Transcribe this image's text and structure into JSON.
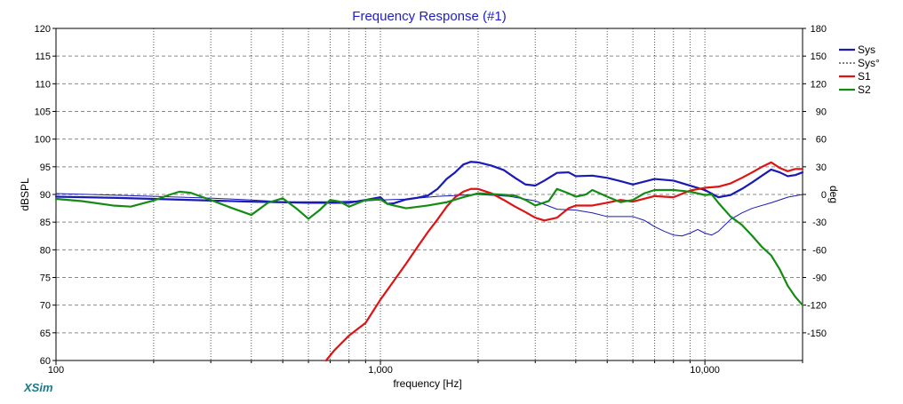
{
  "chart_data": {
    "type": "line",
    "title": "Frequency Response (#1)",
    "xlabel": "frequency [Hz]",
    "ylabel": "dBSPL",
    "y2label": "deg",
    "brand": "XSim",
    "x_scale": "log",
    "xlim": [
      100,
      20000
    ],
    "ylim": [
      60,
      120
    ],
    "y2lim": [
      -180,
      180
    ],
    "x_tick_labels": [
      {
        "value": 100,
        "label": "100"
      },
      {
        "value": 1000,
        "label": "1,000"
      },
      {
        "value": 10000,
        "label": "10,000"
      }
    ],
    "y_ticks": [
      60,
      65,
      70,
      75,
      80,
      85,
      90,
      95,
      100,
      105,
      110,
      115,
      120
    ],
    "y2_ticks": [
      -150,
      -120,
      -90,
      -60,
      -30,
      0,
      30,
      60,
      90,
      120,
      150,
      180
    ],
    "y2_tick_labels": [
      "-150",
      "-120",
      "-90",
      "-60",
      "-30",
      "0",
      "30",
      "60",
      "90",
      "120",
      "150",
      "180"
    ],
    "grid": true,
    "legend_position": "top-right",
    "legend": [
      {
        "name": "Sys",
        "style": "solid"
      },
      {
        "name": "Sys°",
        "style": "dashed"
      },
      {
        "name": "S1",
        "style": "solid"
      },
      {
        "name": "S2",
        "style": "solid"
      }
    ],
    "series": [
      {
        "name": "Sys",
        "axis": "y",
        "color": "#1a1ab4",
        "width": 2.2,
        "points": [
          [
            100,
            89.6
          ],
          [
            150,
            89.4
          ],
          [
            200,
            89.2
          ],
          [
            300,
            88.9
          ],
          [
            400,
            88.7
          ],
          [
            500,
            88.6
          ],
          [
            600,
            88.5
          ],
          [
            700,
            88.5
          ],
          [
            800,
            88.5
          ],
          [
            900,
            89.0
          ],
          [
            1000,
            89.5
          ],
          [
            1050,
            88.3
          ],
          [
            1100,
            88.4
          ],
          [
            1200,
            89.1
          ],
          [
            1300,
            89.4
          ],
          [
            1400,
            89.8
          ],
          [
            1500,
            91.0
          ],
          [
            1600,
            92.8
          ],
          [
            1700,
            94.0
          ],
          [
            1800,
            95.4
          ],
          [
            1900,
            95.9
          ],
          [
            2000,
            95.8
          ],
          [
            2200,
            95.2
          ],
          [
            2400,
            94.4
          ],
          [
            2600,
            93.0
          ],
          [
            2800,
            91.8
          ],
          [
            3000,
            91.6
          ],
          [
            3200,
            92.5
          ],
          [
            3500,
            93.9
          ],
          [
            3800,
            94.0
          ],
          [
            4000,
            93.3
          ],
          [
            4500,
            93.4
          ],
          [
            5000,
            93.0
          ],
          [
            5500,
            92.4
          ],
          [
            6000,
            91.8
          ],
          [
            7000,
            92.8
          ],
          [
            8000,
            92.5
          ],
          [
            9000,
            91.6
          ],
          [
            10000,
            90.8
          ],
          [
            11000,
            89.5
          ],
          [
            12000,
            89.9
          ],
          [
            13000,
            91.0
          ],
          [
            14000,
            92.2
          ],
          [
            15000,
            93.4
          ],
          [
            16000,
            94.5
          ],
          [
            17000,
            94.0
          ],
          [
            18000,
            93.3
          ],
          [
            19000,
            93.5
          ],
          [
            20000,
            94.0
          ]
        ]
      },
      {
        "name": "Sys°",
        "axis": "y2",
        "color": "#1a1ab4",
        "width": 1,
        "points": [
          [
            100,
            1
          ],
          [
            200,
            -2
          ],
          [
            300,
            -4
          ],
          [
            400,
            -6
          ],
          [
            500,
            -8
          ],
          [
            700,
            -8
          ],
          [
            900,
            -7
          ],
          [
            1000,
            -6
          ],
          [
            1200,
            -5
          ],
          [
            1500,
            -2
          ],
          [
            2000,
            0
          ],
          [
            2500,
            -2
          ],
          [
            3000,
            -7
          ],
          [
            3500,
            -16
          ],
          [
            4000,
            -17
          ],
          [
            4500,
            -20
          ],
          [
            5000,
            -24
          ],
          [
            5500,
            -24
          ],
          [
            6000,
            -24
          ],
          [
            6500,
            -28
          ],
          [
            7000,
            -35
          ],
          [
            7500,
            -40
          ],
          [
            8000,
            -44
          ],
          [
            8500,
            -45
          ],
          [
            9000,
            -42
          ],
          [
            9500,
            -38
          ],
          [
            10000,
            -42
          ],
          [
            10500,
            -44
          ],
          [
            11000,
            -40
          ],
          [
            12000,
            -27
          ],
          [
            13000,
            -20
          ],
          [
            14000,
            -15
          ],
          [
            16000,
            -9
          ],
          [
            18000,
            -3
          ],
          [
            20000,
            0
          ]
        ]
      },
      {
        "name": "S1",
        "axis": "y",
        "color": "#dc1414",
        "width": 2.2,
        "points": [
          [
            680,
            60
          ],
          [
            720,
            61.8
          ],
          [
            800,
            64.5
          ],
          [
            900,
            66.8
          ],
          [
            1000,
            71
          ],
          [
            1100,
            74.4
          ],
          [
            1200,
            77.5
          ],
          [
            1300,
            80.5
          ],
          [
            1400,
            83.2
          ],
          [
            1500,
            85.5
          ],
          [
            1600,
            87.8
          ],
          [
            1700,
            89.5
          ],
          [
            1800,
            90.5
          ],
          [
            1900,
            91.0
          ],
          [
            2000,
            91.0
          ],
          [
            2200,
            90.2
          ],
          [
            2400,
            89.0
          ],
          [
            2600,
            87.8
          ],
          [
            2800,
            86.8
          ],
          [
            3000,
            85.8
          ],
          [
            3200,
            85.3
          ],
          [
            3500,
            85.8
          ],
          [
            3800,
            87.5
          ],
          [
            4000,
            88.0
          ],
          [
            4500,
            88.0
          ],
          [
            5000,
            88.5
          ],
          [
            5500,
            89.0
          ],
          [
            6000,
            88.7
          ],
          [
            7000,
            89.7
          ],
          [
            8000,
            89.5
          ],
          [
            9000,
            90.7
          ],
          [
            10000,
            91.2
          ],
          [
            11000,
            91.4
          ],
          [
            12000,
            92.0
          ],
          [
            13000,
            93.0
          ],
          [
            14000,
            94.0
          ],
          [
            15000,
            95.0
          ],
          [
            16000,
            95.8
          ],
          [
            17000,
            94.8
          ],
          [
            18000,
            94.2
          ],
          [
            19000,
            94.6
          ],
          [
            20000,
            94.6
          ]
        ]
      },
      {
        "name": "S2",
        "axis": "y",
        "color": "#148c14",
        "width": 2.2,
        "points": [
          [
            100,
            89.2
          ],
          [
            120,
            88.8
          ],
          [
            150,
            88.0
          ],
          [
            170,
            87.8
          ],
          [
            200,
            88.9
          ],
          [
            220,
            89.8
          ],
          [
            240,
            90.5
          ],
          [
            260,
            90.3
          ],
          [
            300,
            89.0
          ],
          [
            350,
            87.5
          ],
          [
            400,
            86.3
          ],
          [
            450,
            88.5
          ],
          [
            500,
            89.3
          ],
          [
            550,
            87.5
          ],
          [
            600,
            85.6
          ],
          [
            650,
            87.2
          ],
          [
            700,
            89.0
          ],
          [
            750,
            88.7
          ],
          [
            800,
            87.8
          ],
          [
            900,
            89.0
          ],
          [
            1000,
            89.1
          ],
          [
            1050,
            88.3
          ],
          [
            1100,
            88.0
          ],
          [
            1200,
            87.5
          ],
          [
            1400,
            88.0
          ],
          [
            1600,
            88.6
          ],
          [
            1800,
            89.5
          ],
          [
            2000,
            90.2
          ],
          [
            2300,
            90.0
          ],
          [
            2600,
            89.8
          ],
          [
            2800,
            89.0
          ],
          [
            3000,
            88.0
          ],
          [
            3300,
            88.8
          ],
          [
            3500,
            91.0
          ],
          [
            3800,
            90.2
          ],
          [
            4000,
            89.6
          ],
          [
            4300,
            90.0
          ],
          [
            4500,
            90.8
          ],
          [
            5000,
            89.6
          ],
          [
            5500,
            88.6
          ],
          [
            6000,
            89.0
          ],
          [
            6500,
            90.2
          ],
          [
            7000,
            90.8
          ],
          [
            8000,
            90.8
          ],
          [
            9000,
            90.5
          ],
          [
            10000,
            89.9
          ],
          [
            10500,
            90.0
          ],
          [
            11000,
            88.5
          ],
          [
            12000,
            86.0
          ],
          [
            13000,
            84.5
          ],
          [
            14000,
            82.5
          ],
          [
            15000,
            80.5
          ],
          [
            16000,
            79.0
          ],
          [
            17000,
            76.5
          ],
          [
            18000,
            73.5
          ],
          [
            19000,
            71.5
          ],
          [
            20000,
            70.0
          ]
        ]
      }
    ]
  }
}
